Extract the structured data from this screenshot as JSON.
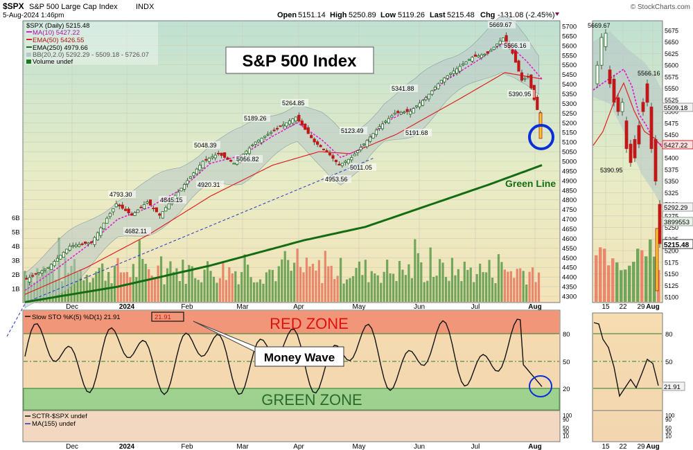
{
  "header": {
    "symbol": "$SPX",
    "name": "S&P 500 Large Cap Index",
    "exchange": "INDX",
    "date": "5-Aug-2024 1:46pm",
    "open_label": "Open",
    "open": "5151.14",
    "high_label": "High",
    "high": "5250.89",
    "low_label": "Low",
    "low": "5119.26",
    "last_label": "Last",
    "last": "5215.48",
    "chg_label": "Chg",
    "chg": "-131.08 (-2.45%)",
    "brand": "© StockCharts.com"
  },
  "legend": {
    "price": "$SPX (Daily) 5215.48",
    "ma10": "MA(10) 5427.22",
    "ema50": "EMA(50) 5426.55",
    "ema250": "EMA(250) 4979.66",
    "bb": "BB(20,2.0) 5292.29 - 5509.18 - 5726.07",
    "volume": "Volume undef"
  },
  "annotations": {
    "title_box": "S&P 500 Index",
    "green_line": "Green Line",
    "money_wave": "Money Wave",
    "red_zone": "RED ZONE",
    "green_zone": "GREEN ZONE"
  },
  "colors": {
    "price_bg": "#eef0c6",
    "bb_fill": "#b8c8c8",
    "ma10": "#e020d0",
    "ema50": "#dd2222",
    "ema250": "#136c13",
    "up": "#1a7a1a",
    "down": "#cc2020",
    "highlight_circle": "#0a2fd8",
    "red_zone": "#f08a6e",
    "green_zone": "#8fd08a"
  },
  "stoch": {
    "label": "Slow STO %K(5) %D(1) 21.91",
    "value": "21.91",
    "levels": [
      "80",
      "50",
      "20"
    ]
  },
  "sctr": {
    "label1": "SCTR-$SPX undef",
    "label2": "MA(155) undef",
    "ticks": [
      "100",
      "90",
      "50",
      "30",
      "10"
    ]
  },
  "volume_ticks": [
    "6B",
    "5B",
    "4B",
    "3B",
    "2B",
    "1B"
  ],
  "right_panel": {
    "x_labels": [
      "15",
      "22",
      "29",
      "Aug"
    ],
    "y_ticks": [
      "5675",
      "5650",
      "5625",
      "5600",
      "5575",
      "5550",
      "5525",
      "5500",
      "5475",
      "5450",
      "5425",
      "5400",
      "5375",
      "5350",
      "5325",
      "5300",
      "5275",
      "5250",
      "5225",
      "5200",
      "5175",
      "5150",
      "5125",
      "5100"
    ],
    "tags": {
      "bb_mid": "5509.18",
      "ma": "5427.22",
      "bb_low": "5292.29",
      "vol": "3899553",
      "last": "5215.48",
      "sto": "21.91"
    },
    "labels": {
      "peak": "5669.67",
      "p2": "5566.16",
      "p3": "5390.95"
    }
  },
  "chart_data": {
    "type": "line",
    "title": "$SPX (Daily)",
    "x_labels": [
      "Dec",
      "2024",
      "Feb",
      "Mar",
      "Apr",
      "May",
      "Jun",
      "Jul",
      "Aug"
    ],
    "y_ticks": [
      "5700",
      "5650",
      "5600",
      "5550",
      "5500",
      "5450",
      "5400",
      "5350",
      "5300",
      "5250",
      "5200",
      "5150",
      "5100",
      "5050",
      "5000",
      "4950",
      "4900",
      "4850",
      "4800",
      "4750",
      "4700",
      "4650",
      "4600",
      "4550",
      "4500",
      "4450",
      "4400",
      "4350",
      "4300"
    ],
    "ylim": [
      4280,
      5730
    ],
    "price_labels": [
      {
        "text": "4793.30"
      },
      {
        "text": "4682.11"
      },
      {
        "text": "5048.39"
      },
      {
        "text": "4845.15"
      },
      {
        "text": "4920.31"
      },
      {
        "text": "5189.26"
      },
      {
        "text": "5056.82"
      },
      {
        "text": "5264.85"
      },
      {
        "text": "4953.56"
      },
      {
        "text": "5123.49"
      },
      {
        "text": "5011.05"
      },
      {
        "text": "5341.88"
      },
      {
        "text": "5191.68"
      },
      {
        "text": "5669.67"
      },
      {
        "text": "5566.16"
      },
      {
        "text": "5390.95"
      }
    ],
    "series": [
      {
        "name": "$SPX (Daily)",
        "points": [
          [
            0,
            4380
          ],
          [
            8,
            4450
          ],
          [
            15,
            4560
          ],
          [
            22,
            4580
          ],
          [
            30,
            4780
          ],
          [
            35,
            4720
          ],
          [
            40,
            4790
          ],
          [
            44,
            4720
          ],
          [
            52,
            4880
          ],
          [
            58,
            5000
          ],
          [
            63,
            5040
          ],
          [
            68,
            4990
          ],
          [
            75,
            5100
          ],
          [
            80,
            5150
          ],
          [
            88,
            5230
          ],
          [
            94,
            5100
          ],
          [
            98,
            5050
          ],
          [
            102,
            4980
          ],
          [
            106,
            5020
          ],
          [
            110,
            5090
          ],
          [
            115,
            5180
          ],
          [
            120,
            5250
          ],
          [
            125,
            5260
          ],
          [
            130,
            5330
          ],
          [
            135,
            5420
          ],
          [
            140,
            5480
          ],
          [
            145,
            5540
          ],
          [
            150,
            5560
          ],
          [
            155,
            5640
          ],
          [
            158,
            5560
          ],
          [
            161,
            5420
          ],
          [
            163,
            5440
          ],
          [
            165,
            5320
          ],
          [
            167,
            5215
          ]
        ]
      },
      {
        "name": "MA(10)",
        "points": [
          [
            0,
            4330
          ],
          [
            10,
            4440
          ],
          [
            20,
            4560
          ],
          [
            30,
            4700
          ],
          [
            40,
            4760
          ],
          [
            50,
            4850
          ],
          [
            60,
            4990
          ],
          [
            70,
            5030
          ],
          [
            80,
            5130
          ],
          [
            88,
            5200
          ],
          [
            96,
            5110
          ],
          [
            102,
            5020
          ],
          [
            108,
            5060
          ],
          [
            116,
            5200
          ],
          [
            126,
            5280
          ],
          [
            136,
            5420
          ],
          [
            146,
            5520
          ],
          [
            154,
            5610
          ],
          [
            158,
            5580
          ],
          [
            162,
            5520
          ],
          [
            167,
            5427
          ]
        ]
      },
      {
        "name": "EMA(50)",
        "points": [
          [
            0,
            4310
          ],
          [
            20,
            4450
          ],
          [
            40,
            4620
          ],
          [
            60,
            4820
          ],
          [
            80,
            4980
          ],
          [
            95,
            5050
          ],
          [
            105,
            5040
          ],
          [
            120,
            5140
          ],
          [
            140,
            5320
          ],
          [
            155,
            5460
          ],
          [
            167,
            5427
          ]
        ]
      },
      {
        "name": "EMA(250)",
        "points": [
          [
            0,
            4270
          ],
          [
            30,
            4350
          ],
          [
            60,
            4460
          ],
          [
            90,
            4590
          ],
          [
            110,
            4660
          ],
          [
            130,
            4770
          ],
          [
            150,
            4880
          ],
          [
            167,
            4980
          ]
        ]
      }
    ]
  }
}
